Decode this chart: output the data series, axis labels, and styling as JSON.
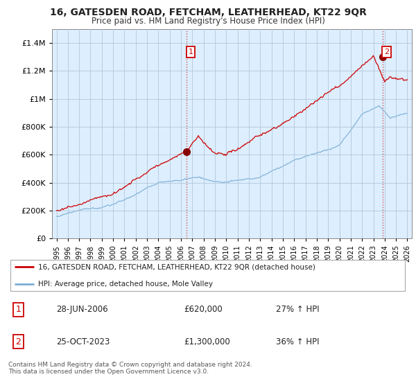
{
  "title": "16, GATESDEN ROAD, FETCHAM, LEATHERHEAD, KT22 9QR",
  "subtitle": "Price paid vs. HM Land Registry's House Price Index (HPI)",
  "legend_line1": "16, GATESDEN ROAD, FETCHAM, LEATHERHEAD, KT22 9QR (detached house)",
  "legend_line2": "HPI: Average price, detached house, Mole Valley",
  "sale1_date": "28-JUN-2006",
  "sale1_price": "£620,000",
  "sale1_hpi": "27% ↑ HPI",
  "sale1_year": 2006.49,
  "sale1_value": 620000,
  "sale2_date": "25-OCT-2023",
  "sale2_price": "£1,300,000",
  "sale2_hpi": "36% ↑ HPI",
  "sale2_year": 2023.81,
  "sale2_value": 1300000,
  "line_color_red": "#cc0000",
  "line_color_blue": "#7aadd4",
  "plot_bg_color": "#ddeeff",
  "grid_color": "#b0c8d8",
  "background_color": "#ffffff",
  "ylim": [
    0,
    1500000
  ],
  "xlim_start": 1994.6,
  "xlim_end": 2026.4
}
